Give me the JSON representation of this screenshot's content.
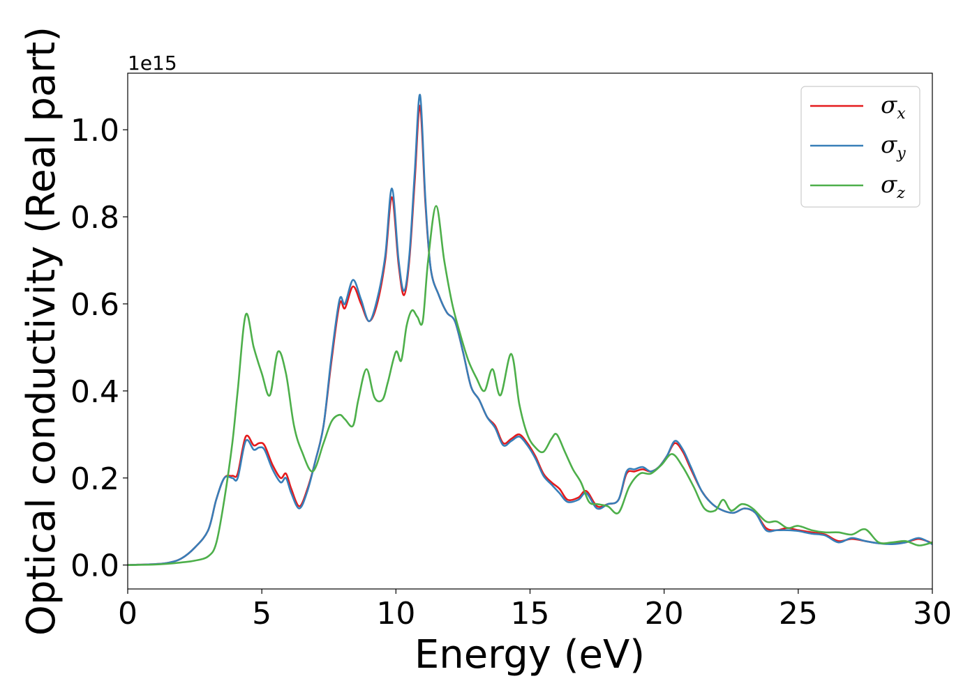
{
  "chart_data": {
    "type": "line",
    "xlabel": "Energy (eV)",
    "ylabel": "Optical conductivity (Real part)",
    "y_offset_label": "1e15",
    "xlim": [
      0,
      30
    ],
    "ylim": [
      -0.055,
      1.13
    ],
    "xticks": [
      0,
      5,
      10,
      15,
      20,
      25,
      30
    ],
    "xtick_labels": [
      "0",
      "5",
      "10",
      "15",
      "20",
      "25",
      "30"
    ],
    "yticks": [
      0.0,
      0.2,
      0.4,
      0.6,
      0.8,
      1.0
    ],
    "ytick_labels": [
      "0.0",
      "0.2",
      "0.4",
      "0.6",
      "0.8",
      "1.0"
    ],
    "grid": false,
    "legend": {
      "placement": "top-right"
    },
    "series": [
      {
        "name": "σx",
        "symbol": "σ",
        "subscript": "x",
        "color": "#e41a1c",
        "x": [
          0,
          1,
          1.5,
          2,
          2.5,
          3,
          3.3,
          3.6,
          3.9,
          4.1,
          4.4,
          4.7,
          4.9,
          5.1,
          5.4,
          5.7,
          5.9,
          6.1,
          6.4,
          6.7,
          7.0,
          7.3,
          7.6,
          7.9,
          8.1,
          8.4,
          8.7,
          9.0,
          9.3,
          9.6,
          9.85,
          10.1,
          10.3,
          10.5,
          10.7,
          10.9,
          11.1,
          11.3,
          11.6,
          11.9,
          12.2,
          12.5,
          12.8,
          13.1,
          13.4,
          13.7,
          14.0,
          14.3,
          14.6,
          14.9,
          15.2,
          15.5,
          15.8,
          16.1,
          16.4,
          16.8,
          17.1,
          17.5,
          17.9,
          18.3,
          18.6,
          18.9,
          19.2,
          19.5,
          19.8,
          20.1,
          20.4,
          20.7,
          21.0,
          21.4,
          21.8,
          22.2,
          22.6,
          23.0,
          23.4,
          23.8,
          24.2,
          24.6,
          25.0,
          25.5,
          26.0,
          26.5,
          27.0,
          27.5,
          28.0,
          28.5,
          29.0,
          29.5,
          30.0
        ],
        "y": [
          0.0,
          0.002,
          0.005,
          0.015,
          0.04,
          0.08,
          0.15,
          0.2,
          0.205,
          0.21,
          0.295,
          0.275,
          0.28,
          0.275,
          0.23,
          0.2,
          0.21,
          0.175,
          0.135,
          0.175,
          0.24,
          0.32,
          0.47,
          0.6,
          0.59,
          0.64,
          0.6,
          0.56,
          0.6,
          0.7,
          0.845,
          0.69,
          0.62,
          0.7,
          0.88,
          1.055,
          0.83,
          0.68,
          0.62,
          0.58,
          0.56,
          0.49,
          0.41,
          0.38,
          0.34,
          0.32,
          0.28,
          0.29,
          0.3,
          0.28,
          0.25,
          0.21,
          0.19,
          0.175,
          0.15,
          0.155,
          0.17,
          0.135,
          0.14,
          0.15,
          0.21,
          0.215,
          0.22,
          0.215,
          0.225,
          0.25,
          0.28,
          0.26,
          0.22,
          0.17,
          0.14,
          0.125,
          0.12,
          0.13,
          0.12,
          0.085,
          0.08,
          0.085,
          0.08,
          0.075,
          0.07,
          0.055,
          0.06,
          0.055,
          0.05,
          0.05,
          0.052,
          0.06,
          0.05
        ]
      },
      {
        "name": "σy",
        "symbol": "σ",
        "subscript": "y",
        "color": "#377eb8",
        "x": [
          0,
          1,
          1.5,
          2,
          2.5,
          3,
          3.3,
          3.6,
          3.9,
          4.1,
          4.4,
          4.7,
          4.9,
          5.1,
          5.4,
          5.7,
          5.9,
          6.1,
          6.4,
          6.7,
          7.0,
          7.3,
          7.6,
          7.9,
          8.1,
          8.4,
          8.7,
          9.0,
          9.3,
          9.6,
          9.85,
          10.1,
          10.3,
          10.5,
          10.7,
          10.9,
          11.1,
          11.3,
          11.6,
          11.9,
          12.2,
          12.5,
          12.8,
          13.1,
          13.4,
          13.7,
          14.0,
          14.3,
          14.6,
          14.9,
          15.2,
          15.5,
          15.8,
          16.1,
          16.4,
          16.8,
          17.1,
          17.5,
          17.9,
          18.3,
          18.6,
          18.9,
          19.2,
          19.5,
          19.8,
          20.1,
          20.4,
          20.7,
          21.0,
          21.4,
          21.8,
          22.2,
          22.6,
          23.0,
          23.4,
          23.8,
          24.2,
          24.6,
          25.0,
          25.5,
          26.0,
          26.5,
          27.0,
          27.5,
          28.0,
          28.5,
          29.0,
          29.5,
          30.0
        ],
        "y": [
          0.0,
          0.002,
          0.005,
          0.015,
          0.04,
          0.08,
          0.15,
          0.2,
          0.2,
          0.2,
          0.285,
          0.265,
          0.27,
          0.265,
          0.22,
          0.19,
          0.2,
          0.165,
          0.13,
          0.17,
          0.24,
          0.32,
          0.48,
          0.61,
          0.6,
          0.655,
          0.61,
          0.56,
          0.61,
          0.71,
          0.865,
          0.7,
          0.63,
          0.71,
          0.9,
          1.08,
          0.84,
          0.68,
          0.62,
          0.58,
          0.56,
          0.49,
          0.41,
          0.38,
          0.34,
          0.315,
          0.275,
          0.285,
          0.295,
          0.275,
          0.245,
          0.205,
          0.185,
          0.165,
          0.145,
          0.15,
          0.165,
          0.13,
          0.14,
          0.15,
          0.215,
          0.22,
          0.225,
          0.215,
          0.225,
          0.25,
          0.285,
          0.265,
          0.225,
          0.17,
          0.14,
          0.125,
          0.12,
          0.13,
          0.12,
          0.08,
          0.08,
          0.08,
          0.078,
          0.072,
          0.068,
          0.052,
          0.062,
          0.055,
          0.05,
          0.048,
          0.052,
          0.062,
          0.048
        ]
      },
      {
        "name": "σz",
        "symbol": "σ",
        "subscript": "z",
        "color": "#4daf4a",
        "x": [
          0,
          1,
          1.5,
          2,
          2.5,
          3,
          3.3,
          3.6,
          3.9,
          4.1,
          4.4,
          4.7,
          5.0,
          5.3,
          5.6,
          5.9,
          6.2,
          6.5,
          6.9,
          7.3,
          7.6,
          7.9,
          8.1,
          8.4,
          8.6,
          8.9,
          9.2,
          9.5,
          9.7,
          10.0,
          10.2,
          10.4,
          10.6,
          10.8,
          11.0,
          11.2,
          11.5,
          11.8,
          12.1,
          12.4,
          12.7,
          13.0,
          13.3,
          13.6,
          13.9,
          14.3,
          14.6,
          14.9,
          15.2,
          15.5,
          15.8,
          16.0,
          16.3,
          16.6,
          16.9,
          17.2,
          17.5,
          17.9,
          18.3,
          18.7,
          19.1,
          19.5,
          19.9,
          20.3,
          20.7,
          21.1,
          21.5,
          21.9,
          22.2,
          22.5,
          22.9,
          23.3,
          23.8,
          24.2,
          24.6,
          25.0,
          25.5,
          26.0,
          26.5,
          27.0,
          27.5,
          28.0,
          28.5,
          29.0,
          29.5,
          30.0
        ],
        "y": [
          0.0,
          0.001,
          0.003,
          0.006,
          0.01,
          0.02,
          0.05,
          0.15,
          0.28,
          0.4,
          0.575,
          0.5,
          0.44,
          0.39,
          0.49,
          0.44,
          0.32,
          0.26,
          0.215,
          0.28,
          0.33,
          0.345,
          0.335,
          0.32,
          0.38,
          0.45,
          0.385,
          0.38,
          0.42,
          0.49,
          0.47,
          0.55,
          0.585,
          0.57,
          0.56,
          0.7,
          0.825,
          0.7,
          0.6,
          0.53,
          0.47,
          0.43,
          0.4,
          0.45,
          0.39,
          0.485,
          0.37,
          0.3,
          0.27,
          0.26,
          0.29,
          0.3,
          0.26,
          0.22,
          0.19,
          0.145,
          0.14,
          0.135,
          0.12,
          0.18,
          0.21,
          0.21,
          0.23,
          0.255,
          0.225,
          0.18,
          0.13,
          0.125,
          0.15,
          0.125,
          0.14,
          0.13,
          0.1,
          0.1,
          0.085,
          0.09,
          0.08,
          0.075,
          0.075,
          0.07,
          0.082,
          0.052,
          0.052,
          0.055,
          0.045,
          0.052
        ]
      }
    ]
  }
}
